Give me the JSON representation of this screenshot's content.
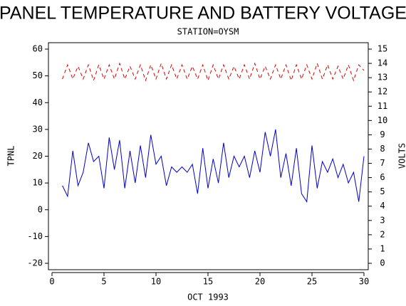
{
  "chart_data": {
    "type": "line",
    "title": "PANEL TEMPERATURE AND BATTERY VOLTAGE",
    "subtitle": "STATION=OYSM",
    "xlabel": "OCT 1993",
    "ylabel": "TPNL",
    "y2label": "VOLTS",
    "x": [
      1,
      1.5,
      2,
      2.5,
      3,
      3.5,
      4,
      4.5,
      5,
      5.5,
      6,
      6.5,
      7,
      7.5,
      8,
      8.5,
      9,
      9.5,
      10,
      10.5,
      11,
      11.5,
      12,
      12.5,
      13,
      13.5,
      14,
      14.5,
      15,
      15.5,
      16,
      16.5,
      17,
      17.5,
      18,
      18.5,
      19,
      19.5,
      20,
      20.5,
      21,
      21.5,
      22,
      22.5,
      23,
      23.5,
      24,
      24.5,
      25,
      25.5,
      26,
      26.5,
      27,
      27.5,
      28,
      28.5,
      29,
      29.5,
      30
    ],
    "series": [
      {
        "color": "#0000cc",
        "values": [
          9,
          5,
          22,
          9,
          14,
          25,
          18,
          20,
          8,
          27,
          15,
          26,
          8,
          22,
          10,
          24,
          12,
          28,
          17,
          20,
          9,
          16,
          14,
          16,
          14,
          17,
          6,
          23,
          8,
          19,
          10,
          25,
          12,
          20,
          16,
          20,
          12,
          22,
          14,
          29,
          20,
          30,
          12,
          21,
          9,
          23,
          6,
          3,
          24,
          8,
          18,
          14,
          19,
          12,
          17,
          10,
          14,
          3,
          20
        ]
      },
      {
        "color": "#dd0000",
        "axis": "y2",
        "dashed": true,
        "values": [
          12.9,
          13.9,
          12.9,
          13.8,
          12.9,
          13.9,
          12.8,
          13.9,
          12.9,
          13.9,
          12.9,
          14,
          12.9,
          13.8,
          12.9,
          13.9,
          12.8,
          13.9,
          12.9,
          14,
          12.9,
          13.9,
          12.9,
          13.9,
          12.9,
          13.8,
          12.9,
          13.9,
          12.8,
          13.9,
          12.9,
          13.9,
          12.9,
          13.8,
          12.9,
          13.9,
          12.9,
          14,
          12.9,
          13.8,
          12.9,
          13.9,
          12.9,
          13.9,
          12.8,
          13.9,
          12.9,
          13.9,
          12.9,
          14,
          12.9,
          13.9,
          12.9,
          13.8,
          12.9,
          13.9,
          12.8,
          13.9,
          13.5
        ]
      }
    ],
    "xlim": [
      0,
      30
    ],
    "xticks": [
      0,
      5,
      10,
      15,
      20,
      25,
      30
    ],
    "ylim": [
      -20,
      60
    ],
    "yticks": [
      -20,
      -10,
      0,
      10,
      20,
      30,
      40,
      50,
      60
    ],
    "y2lim": [
      0,
      15
    ],
    "y2ticks": [
      0,
      1,
      2,
      3,
      4,
      5,
      6,
      7,
      8,
      9,
      10,
      11,
      12,
      13,
      14,
      15
    ]
  }
}
